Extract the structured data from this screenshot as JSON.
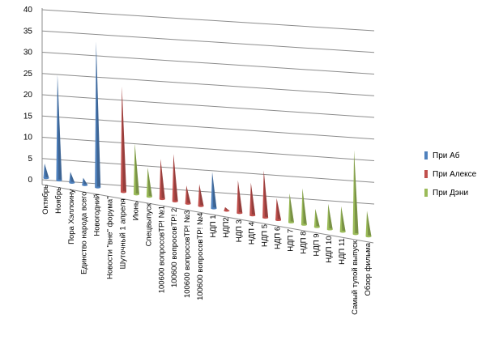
{
  "chart_data": {
    "type": "bar",
    "style": "3d-cone",
    "title": "",
    "xlabel": "",
    "ylabel": "",
    "ylim": [
      0,
      40
    ],
    "yticks": [
      0,
      5,
      10,
      15,
      20,
      25,
      30,
      35,
      40
    ],
    "grid": true,
    "legend_position": "right",
    "categories": [
      "Октябрь",
      "Ноябрь",
      "Пора Хэллоину",
      "Единство народа всего",
      "Новогодний",
      "Новости \"вне\" форума\"",
      "Шуточный 1 апреля",
      "Июнь",
      "Спецвыпуск",
      "100600 вопросовТР! №1",
      "100600 вопросовТР! 2",
      "100600 вопросовТР! №3",
      "100600 вопросовТР! №4",
      "НДП 1",
      "НДП2",
      "НДП 3",
      "НДП 4",
      "НДП 5",
      "НДП 6",
      "НДП 7",
      "НДП 8",
      "НДП 9",
      "НДП 10",
      "НДП 11",
      "Самый тупой выпуск",
      "Обзор фильма"
    ],
    "series": [
      {
        "name": "При Аб",
        "color": "#4f81bd",
        "values": [
          4,
          29,
          3,
          2,
          40,
          null,
          null,
          null,
          null,
          null,
          null,
          null,
          null,
          10,
          null,
          null,
          null,
          null,
          null,
          null,
          null,
          null,
          null,
          null,
          null,
          null
        ]
      },
      {
        "name": "При Алексе",
        "color": "#c0504d",
        "values": [
          null,
          null,
          null,
          null,
          null,
          null,
          29,
          null,
          null,
          11,
          13,
          5,
          6,
          null,
          1,
          9,
          9,
          13,
          6,
          null,
          null,
          null,
          null,
          null,
          null,
          null
        ]
      },
      {
        "name": "При Дэни",
        "color": "#9bbb59",
        "values": [
          null,
          null,
          null,
          null,
          null,
          null,
          null,
          14,
          8,
          null,
          null,
          null,
          null,
          null,
          null,
          null,
          null,
          null,
          null,
          8,
          10,
          5,
          7,
          7,
          23,
          7
        ]
      }
    ]
  }
}
